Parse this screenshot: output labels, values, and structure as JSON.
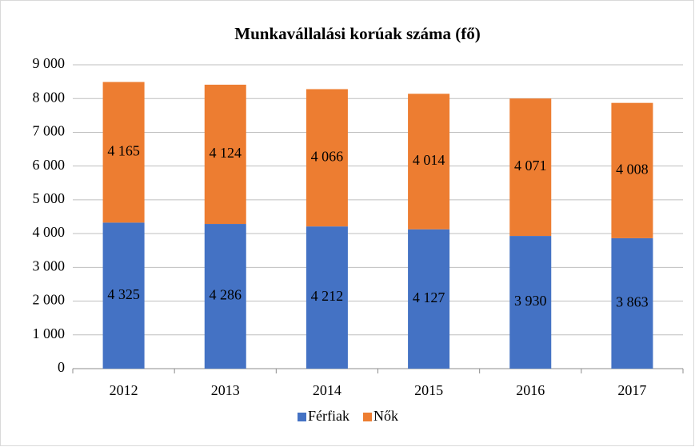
{
  "chart_data": {
    "type": "stacked_bar",
    "title": "Munkavállalási korúak száma (fő)",
    "categories": [
      "2012",
      "2013",
      "2014",
      "2015",
      "2016",
      "2017"
    ],
    "series": [
      {
        "name": "Férfiak",
        "color": "#4472c4",
        "values": [
          4325,
          4286,
          4212,
          4127,
          3930,
          3863
        ],
        "value_labels": [
          "4 325",
          "4 286",
          "4 212",
          "4 127",
          "3 930",
          "3 863"
        ]
      },
      {
        "name": "Nők",
        "color": "#ed7d31",
        "values": [
          4165,
          4124,
          4066,
          4014,
          4071,
          4008
        ],
        "value_labels": [
          "4 165",
          "4 124",
          "4 066",
          "4 014",
          "4 071",
          "4 008"
        ]
      }
    ],
    "ylim": [
      0,
      9000
    ],
    "yticks": [
      0,
      {
        "value": 1000,
        "label": "1 000"
      },
      {
        "value": 2000,
        "label": "2 000"
      },
      {
        "value": 3000,
        "label": "3 000"
      },
      {
        "value": 4000,
        "label": "4 000"
      },
      {
        "value": 5000,
        "label": "5 000"
      },
      {
        "value": 6000,
        "label": "6 000"
      },
      {
        "value": 7000,
        "label": "7 000"
      },
      {
        "value": 8000,
        "label": "8 000"
      },
      {
        "value": 9000,
        "label": "9 000"
      }
    ],
    "grid": true,
    "legend": "bottom"
  }
}
